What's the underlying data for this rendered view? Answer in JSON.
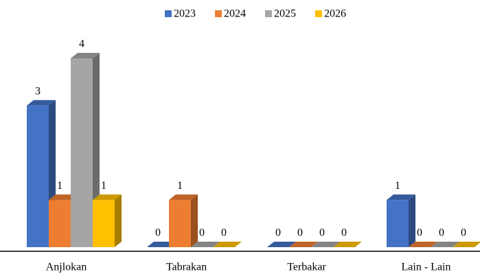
{
  "chart_data": {
    "type": "bar3d",
    "categories": [
      "Anjlokan",
      "Tabrakan",
      "Terbakar",
      "Lain - Lain"
    ],
    "series": [
      {
        "name": "2023",
        "color": "#4472c4",
        "values": [
          3,
          0,
          0,
          1
        ]
      },
      {
        "name": "2024",
        "color": "#ed7d31",
        "values": [
          1,
          1,
          0,
          0
        ]
      },
      {
        "name": "2025",
        "color": "#a5a5a5",
        "values": [
          4,
          0,
          0,
          0
        ]
      },
      {
        "name": "2026",
        "color": "#ffc000",
        "values": [
          1,
          0,
          0,
          0
        ]
      }
    ],
    "legend": "top"
  }
}
